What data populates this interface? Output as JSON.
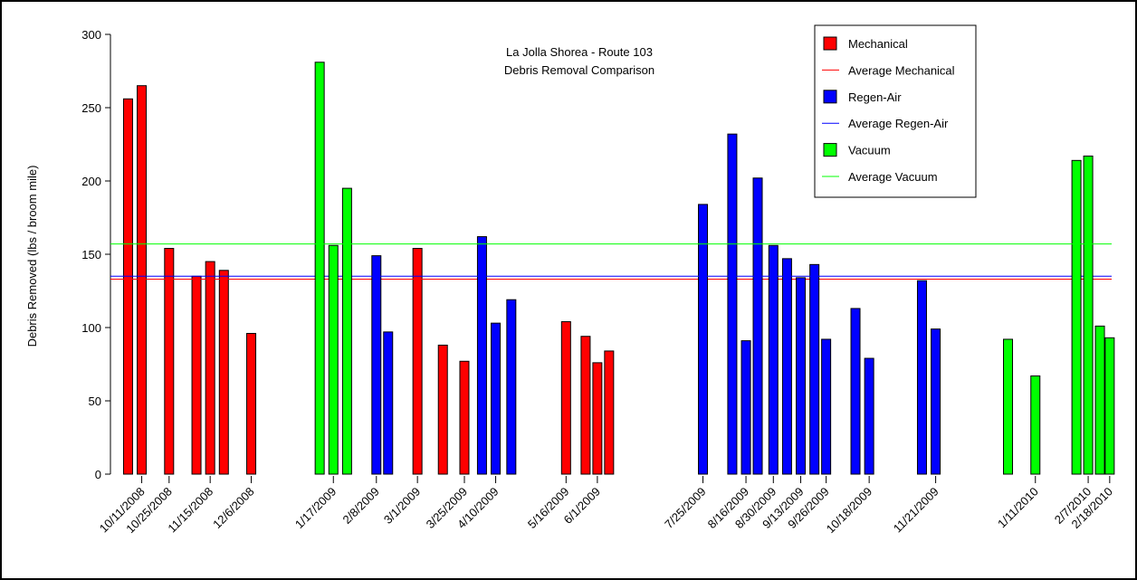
{
  "chart_data": {
    "type": "bar",
    "title": "La Jolla Shorea - Route 103",
    "subtitle": "Debris Removal Comparison",
    "y_label": "Debris Removed (lbs / broom mile)",
    "ylim": [
      0,
      300
    ],
    "yticks": [
      0,
      50,
      100,
      150,
      200,
      250,
      300
    ],
    "xlim": [
      "9/25/2008",
      "2/19/2010"
    ],
    "xticks": [
      "10/11/2008",
      "10/25/2008",
      "11/15/2008",
      "12/6/2008",
      "1/17/2009",
      "2/8/2009",
      "3/1/2009",
      "3/25/2009",
      "4/10/2009",
      "5/16/2009",
      "6/1/2009",
      "7/25/2009",
      "8/16/2009",
      "8/30/2009",
      "9/13/2009",
      "9/26/2009",
      "10/18/2009",
      "11/21/2009",
      "1/11/2010",
      "2/7/2010",
      "2/18/2010"
    ],
    "series": [
      {
        "name": "Mechanical",
        "color": "#ff0000",
        "average_name": "Average Mechanical",
        "average": 133,
        "x": [
          "10/4/2008",
          "10/11/2008",
          "10/25/2008",
          "11/8/2008",
          "11/15/2008",
          "11/22/2008",
          "12/6/2008",
          "3/1/2009",
          "3/14/2009",
          "3/25/2009",
          "5/16/2009",
          "5/26/2009",
          "6/1/2009",
          "6/7/2009"
        ],
        "values": [
          256,
          265,
          154,
          135,
          145,
          139,
          96,
          154,
          88,
          77,
          104,
          94,
          76,
          84
        ]
      },
      {
        "name": "Regen-Air",
        "color": "#0000ff",
        "average_name": "Average Regen-Air",
        "average": 135,
        "x": [
          "2/8/2009",
          "2/14/2009",
          "4/3/2009",
          "4/10/2009",
          "4/18/2009",
          "7/25/2009",
          "8/9/2009",
          "8/16/2009",
          "8/22/2009",
          "8/30/2009",
          "9/6/2009",
          "9/13/2009",
          "9/20/2009",
          "9/26/2009",
          "10/11/2009",
          "10/18/2009",
          "11/14/2009",
          "11/21/2009"
        ],
        "values": [
          149,
          97,
          162,
          103,
          119,
          184,
          232,
          91,
          202,
          156,
          147,
          134,
          143,
          92,
          113,
          79,
          132,
          99
        ]
      },
      {
        "name": "Vacuum",
        "color": "#00ff00",
        "average_name": "Average Vacuum",
        "average": 157,
        "x": [
          "1/10/2009",
          "1/17/2009",
          "1/24/2009",
          "12/28/2009",
          "1/11/2010",
          "2/1/2010",
          "2/7/2010",
          "2/13/2010",
          "2/18/2010"
        ],
        "values": [
          281,
          156,
          195,
          92,
          67,
          214,
          217,
          101,
          93
        ]
      }
    ]
  }
}
